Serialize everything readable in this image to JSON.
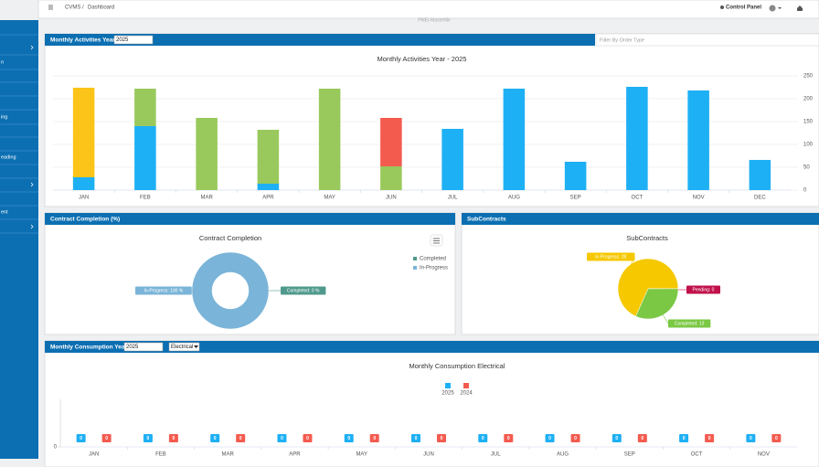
{
  "topbar": {
    "app": "CVMS",
    "page": "Dashboard",
    "control_panel": "Control Panel"
  },
  "sidebar": {
    "items": [
      "n",
      "ing",
      "eading",
      "ent"
    ]
  },
  "banner": "PMEI-Masterfile",
  "chart_data": [
    {
      "type": "bar",
      "stacked": true,
      "header": "Monthly Activities Year",
      "year": "2025",
      "filter_placeholder": "Filter By Order Type",
      "title": "Monthly Activities Year - 2025",
      "categories": [
        "JAN",
        "FEB",
        "MAR",
        "APR",
        "MAY",
        "JUN",
        "JUL",
        "AUG",
        "SEP",
        "OCT",
        "NOV",
        "DEC"
      ],
      "series": [
        {
          "color": "#1eb0f4",
          "values": [
            28,
            140,
            0,
            14,
            0,
            0,
            134,
            222,
            62,
            226,
            218,
            66
          ]
        },
        {
          "color": "#fcc419",
          "values": [
            196,
            0,
            0,
            0,
            0,
            0,
            0,
            0,
            0,
            0,
            0,
            0
          ]
        },
        {
          "color": "#99c95c",
          "values": [
            0,
            82,
            158,
            118,
            222,
            52,
            0,
            0,
            0,
            0,
            0,
            0
          ]
        },
        {
          "color": "#f45b4f",
          "values": [
            0,
            0,
            0,
            0,
            0,
            106,
            0,
            0,
            0,
            0,
            0,
            0
          ]
        }
      ],
      "ylim": [
        0,
        250
      ],
      "yticks": [
        0,
        50,
        100,
        150,
        200,
        250
      ],
      "y_axis_side": "right",
      "grid": true
    },
    {
      "type": "donut",
      "header": "Contract Completion (%)",
      "title": "Contract Completion",
      "categories": [
        "Completed",
        "In-Progress"
      ],
      "values": [
        0,
        100
      ],
      "value_labels": [
        "Completed: 0 %",
        "In-Progress: 100 %"
      ],
      "colors": [
        "#4f9a8c",
        "#7ab4d8"
      ],
      "legend": "right"
    },
    {
      "type": "pie",
      "header": "SubContracts",
      "title": "SubContracts",
      "categories": [
        "In-Progress",
        "Pending",
        "Completed"
      ],
      "values": [
        28,
        0,
        13
      ],
      "value_labels": [
        "In-Progress: 28",
        "Pending: 0",
        "Completed: 13"
      ],
      "colors": [
        "#f5c800",
        "#c0114a",
        "#7ac843"
      ]
    },
    {
      "type": "bar",
      "stacked": false,
      "header": "Monthly Consumption Year",
      "year": "2025",
      "utility": "Electrical",
      "title": "Monthly Consumption Electrical",
      "categories": [
        "JAN",
        "FEB",
        "MAR",
        "APR",
        "MAY",
        "JUN",
        "JUL",
        "AUG",
        "SEP",
        "OCT",
        "NOV"
      ],
      "series": [
        {
          "name": "2025",
          "color": "#1eb0f4",
          "values": [
            0,
            0,
            0,
            0,
            0,
            0,
            0,
            0,
            0,
            0,
            0
          ]
        },
        {
          "name": "2024",
          "color": "#f45b4f",
          "values": [
            0,
            0,
            0,
            0,
            0,
            0,
            0,
            0,
            0,
            0,
            0
          ]
        }
      ],
      "ylim": [
        0,
        1
      ],
      "yticks": [
        0
      ],
      "legend": "top",
      "data_labels": true
    }
  ]
}
